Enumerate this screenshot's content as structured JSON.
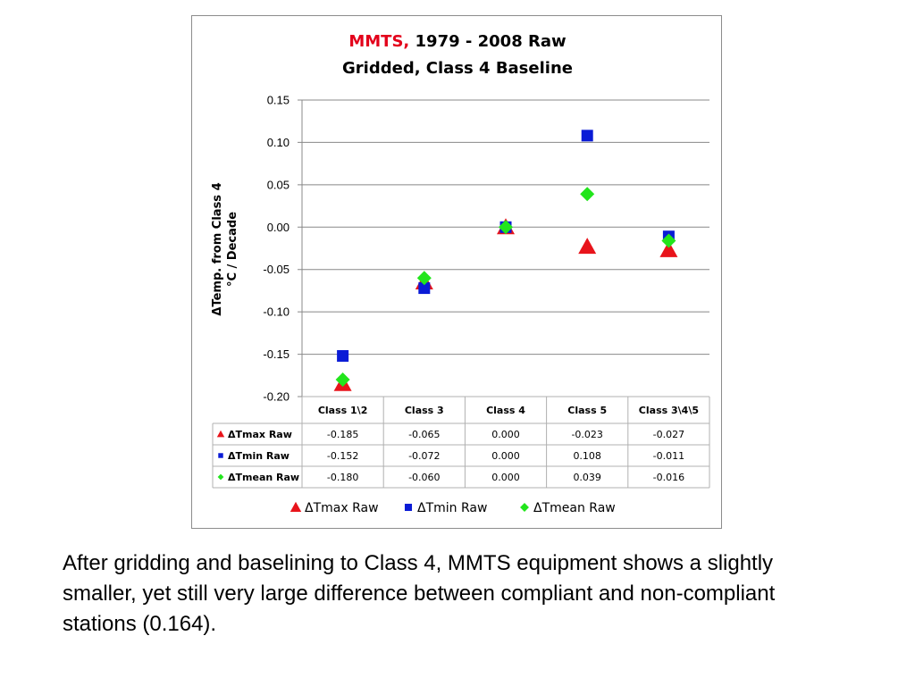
{
  "chart_data": {
    "type": "scatter",
    "title_accent": "MMTS,",
    "title_rest": " 1979 - 2008 Raw",
    "title_line2": "Gridded, Class 4 Baseline",
    "ylabel_line1": "ΔTemp. from Class 4",
    "ylabel_line2": "°C / Decade",
    "ylim": [
      -0.2,
      0.15
    ],
    "yticks": [
      0.15,
      0.1,
      0.05,
      0.0,
      -0.05,
      -0.1,
      -0.15,
      -0.2
    ],
    "categories": [
      "Class 1\\2",
      "Class 3",
      "Class 4",
      "Class 5",
      "Class 3\\4\\5"
    ],
    "grid": "horizontal",
    "legend_position": "bottom",
    "series": [
      {
        "name": "ΔTmax Raw",
        "marker": "triangle",
        "color": "#e8141b",
        "values": [
          -0.185,
          -0.065,
          0.0,
          -0.023,
          -0.027
        ],
        "labels": [
          "-0.185",
          "-0.065",
          "0.000",
          "-0.023",
          "-0.027"
        ]
      },
      {
        "name": "ΔTmin Raw",
        "marker": "square",
        "color": "#0a1bd6",
        "values": [
          -0.152,
          -0.072,
          0.0,
          0.108,
          -0.011
        ],
        "labels": [
          "-0.152",
          "-0.072",
          "0.000",
          "0.108",
          "-0.011"
        ]
      },
      {
        "name": "ΔTmean Raw",
        "marker": "diamond",
        "color": "#22e51c",
        "values": [
          -0.18,
          -0.06,
          0.0,
          0.039,
          -0.016
        ],
        "labels": [
          "-0.180",
          "-0.060",
          "0.000",
          "0.039",
          "-0.016"
        ]
      }
    ]
  },
  "caption": "After gridding and baselining to Class 4, MMTS equipment shows a slightly smaller, yet still very large difference between compliant and non-compliant stations (0.164)."
}
